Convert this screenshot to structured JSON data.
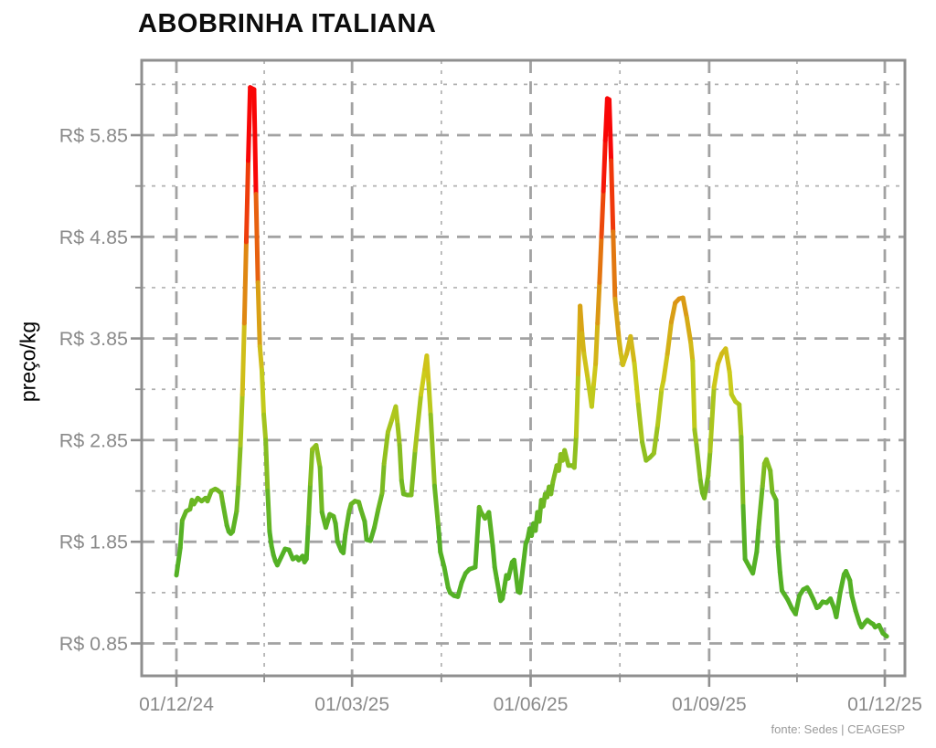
{
  "title": "ABOBRINHA ITALIANA",
  "footer": {
    "source": "fonte: Sedes | CEAGESP"
  },
  "chart_data": {
    "type": "line",
    "title": "ABOBRINHA ITALIANA",
    "xlabel": "",
    "ylabel": "preço/kg",
    "currency": "R$",
    "grid": true,
    "legend": "none",
    "x_tick_labels": [
      "01/12/24",
      "01/03/25",
      "01/06/25",
      "01/09/25",
      "01/12/25"
    ],
    "x_tick_days": [
      0,
      90.5,
      182.5,
      274.5,
      365
    ],
    "x_minor_days": [
      45.25,
      136.5,
      228.5,
      319.75
    ],
    "y_tick_labels": [
      "R$ 0.85",
      "R$ 1.85",
      "R$ 2.85",
      "R$ 3.85",
      "R$ 4.85",
      "R$ 5.85"
    ],
    "y_tick_values": [
      0.85,
      1.85,
      2.85,
      3.85,
      4.85,
      5.85
    ],
    "y_minor_values": [
      1.35,
      2.35,
      3.35,
      4.35,
      5.35,
      6.35
    ],
    "ylim": [
      0.53,
      6.59
    ],
    "xlim_days": [
      -18,
      375
    ],
    "x_units": "days since 01/12/24",
    "color_scale": {
      "description": "line colored by price: green low to red high",
      "green": "#44b81c",
      "olive": "#a3a51a",
      "dark_yellow": "#c19e15",
      "orange": "#e06a10",
      "red": "#fb1506",
      "domain": [
        1.9,
        5.7
      ]
    },
    "peaks": [
      {
        "date": "early Jan 2025",
        "price": 6.32
      },
      {
        "date": "mid Jul 2025",
        "price": 6.21
      }
    ],
    "series": [
      {
        "name": "preço abobrinha italiana (R$/kg)",
        "points": [
          [
            0,
            1.52
          ],
          [
            2,
            1.79
          ],
          [
            3,
            2.06
          ],
          [
            5,
            2.15
          ],
          [
            7,
            2.17
          ],
          [
            8,
            2.26
          ],
          [
            9,
            2.22
          ],
          [
            11,
            2.28
          ],
          [
            13,
            2.25
          ],
          [
            15,
            2.28
          ],
          [
            16,
            2.25
          ],
          [
            18,
            2.35
          ],
          [
            20,
            2.37
          ],
          [
            21,
            2.36
          ],
          [
            23,
            2.33
          ],
          [
            24,
            2.22
          ],
          [
            26,
            2.01
          ],
          [
            27,
            1.95
          ],
          [
            28,
            1.93
          ],
          [
            29,
            1.95
          ],
          [
            31,
            2.15
          ],
          [
            32,
            2.42
          ],
          [
            33,
            2.8
          ],
          [
            34,
            3.3
          ],
          [
            35,
            4.0
          ],
          [
            36,
            4.8
          ],
          [
            37,
            5.6
          ],
          [
            38,
            6.32
          ],
          [
            40,
            6.3
          ],
          [
            41,
            5.27
          ],
          [
            42,
            4.4
          ],
          [
            43,
            3.77
          ],
          [
            44,
            3.54
          ],
          [
            45,
            3.1
          ],
          [
            46,
            2.85
          ],
          [
            47,
            2.35
          ],
          [
            48,
            1.95
          ],
          [
            49,
            1.81
          ],
          [
            50,
            1.72
          ],
          [
            51,
            1.66
          ],
          [
            52,
            1.62
          ],
          [
            54,
            1.7
          ],
          [
            56,
            1.78
          ],
          [
            58,
            1.77
          ],
          [
            60,
            1.68
          ],
          [
            62,
            1.7
          ],
          [
            63,
            1.67
          ],
          [
            65,
            1.71
          ],
          [
            66,
            1.65
          ],
          [
            67,
            1.68
          ],
          [
            68,
            2.03
          ],
          [
            69,
            2.42
          ],
          [
            70,
            2.76
          ],
          [
            72,
            2.8
          ],
          [
            74,
            2.58
          ],
          [
            75,
            2.14
          ],
          [
            77,
            1.99
          ],
          [
            79,
            2.12
          ],
          [
            81,
            2.1
          ],
          [
            82,
            2.03
          ],
          [
            83,
            1.85
          ],
          [
            85,
            1.76
          ],
          [
            86,
            1.74
          ],
          [
            87,
            1.92
          ],
          [
            89,
            2.15
          ],
          [
            90,
            2.22
          ],
          [
            92,
            2.25
          ],
          [
            94,
            2.24
          ],
          [
            95,
            2.17
          ],
          [
            97,
            2.05
          ],
          [
            98,
            1.87
          ],
          [
            100,
            1.86
          ],
          [
            102,
            1.99
          ],
          [
            104,
            2.17
          ],
          [
            106,
            2.33
          ],
          [
            107,
            2.62
          ],
          [
            109,
            2.93
          ],
          [
            111,
            3.05
          ],
          [
            113,
            3.18
          ],
          [
            114,
            3.0
          ],
          [
            115,
            2.8
          ],
          [
            116,
            2.45
          ],
          [
            117,
            2.32
          ],
          [
            119,
            2.31
          ],
          [
            121,
            2.31
          ],
          [
            123,
            2.75
          ],
          [
            126,
            3.3
          ],
          [
            128,
            3.55
          ],
          [
            129,
            3.68
          ],
          [
            130,
            3.4
          ],
          [
            131,
            3.1
          ],
          [
            133,
            2.4
          ],
          [
            135,
            1.99
          ],
          [
            136,
            1.75
          ],
          [
            138,
            1.6
          ],
          [
            140,
            1.4
          ],
          [
            141,
            1.35
          ],
          [
            143,
            1.32
          ],
          [
            145,
            1.31
          ],
          [
            147,
            1.45
          ],
          [
            149,
            1.54
          ],
          [
            151,
            1.58
          ],
          [
            154,
            1.6
          ],
          [
            156,
            2.19
          ],
          [
            157,
            2.14
          ],
          [
            159,
            2.08
          ],
          [
            161,
            2.14
          ],
          [
            163,
            1.81
          ],
          [
            164,
            1.6
          ],
          [
            165,
            1.49
          ],
          [
            167,
            1.27
          ],
          [
            168,
            1.29
          ],
          [
            170,
            1.52
          ],
          [
            171,
            1.49
          ],
          [
            173,
            1.65
          ],
          [
            174,
            1.67
          ],
          [
            176,
            1.36
          ],
          [
            177,
            1.35
          ],
          [
            179,
            1.67
          ],
          [
            180,
            1.83
          ],
          [
            181,
            1.88
          ],
          [
            182,
            1.98
          ],
          [
            183,
            1.91
          ],
          [
            184,
            2.03
          ],
          [
            185,
            1.96
          ],
          [
            186,
            2.14
          ],
          [
            187,
            2.05
          ],
          [
            188,
            2.26
          ],
          [
            189,
            2.2
          ],
          [
            190,
            2.32
          ],
          [
            191,
            2.29
          ],
          [
            192,
            2.39
          ],
          [
            193,
            2.32
          ],
          [
            194,
            2.44
          ],
          [
            196,
            2.6
          ],
          [
            197,
            2.55
          ],
          [
            198,
            2.71
          ],
          [
            199,
            2.65
          ],
          [
            200,
            2.75
          ],
          [
            202,
            2.6
          ],
          [
            204,
            2.6
          ],
          [
            205,
            2.58
          ],
          [
            206,
            2.89
          ],
          [
            207,
            3.5
          ],
          [
            208,
            4.17
          ],
          [
            209,
            3.9
          ],
          [
            210,
            3.7
          ],
          [
            212,
            3.45
          ],
          [
            214,
            3.18
          ],
          [
            215,
            3.4
          ],
          [
            216,
            3.6
          ],
          [
            217,
            4.0
          ],
          [
            218,
            4.4
          ],
          [
            219,
            4.85
          ],
          [
            220,
            5.3
          ],
          [
            221,
            5.8
          ],
          [
            222,
            6.21
          ],
          [
            223,
            6.2
          ],
          [
            224,
            5.6
          ],
          [
            225,
            4.9
          ],
          [
            226,
            4.24
          ],
          [
            228,
            3.85
          ],
          [
            229,
            3.7
          ],
          [
            230,
            3.59
          ],
          [
            232,
            3.7
          ],
          [
            234,
            3.87
          ],
          [
            236,
            3.6
          ],
          [
            238,
            3.2
          ],
          [
            240,
            2.83
          ],
          [
            242,
            2.65
          ],
          [
            244,
            2.68
          ],
          [
            246,
            2.72
          ],
          [
            248,
            3.0
          ],
          [
            250,
            3.35
          ],
          [
            251,
            3.44
          ],
          [
            253,
            3.7
          ],
          [
            255,
            4.01
          ],
          [
            257,
            4.2
          ],
          [
            259,
            4.24
          ],
          [
            261,
            4.25
          ],
          [
            263,
            4.05
          ],
          [
            265,
            3.81
          ],
          [
            266,
            3.63
          ],
          [
            267,
            2.95
          ],
          [
            268,
            2.8
          ],
          [
            270,
            2.45
          ],
          [
            271,
            2.33
          ],
          [
            272,
            2.28
          ],
          [
            274,
            2.5
          ],
          [
            275,
            2.74
          ],
          [
            277,
            3.37
          ],
          [
            279,
            3.6
          ],
          [
            281,
            3.7
          ],
          [
            283,
            3.75
          ],
          [
            285,
            3.52
          ],
          [
            286,
            3.3
          ],
          [
            288,
            3.23
          ],
          [
            290,
            3.2
          ],
          [
            291,
            2.88
          ],
          [
            292,
            2.2
          ],
          [
            293,
            1.68
          ],
          [
            295,
            1.61
          ],
          [
            297,
            1.54
          ],
          [
            299,
            1.75
          ],
          [
            300,
            1.99
          ],
          [
            302,
            2.4
          ],
          [
            303,
            2.62
          ],
          [
            304,
            2.66
          ],
          [
            306,
            2.55
          ],
          [
            307,
            2.34
          ],
          [
            309,
            2.26
          ],
          [
            310,
            1.8
          ],
          [
            311,
            1.55
          ],
          [
            312,
            1.37
          ],
          [
            313,
            1.34
          ],
          [
            315,
            1.28
          ],
          [
            317,
            1.2
          ],
          [
            319,
            1.14
          ],
          [
            321,
            1.32
          ],
          [
            323,
            1.38
          ],
          [
            325,
            1.4
          ],
          [
            326,
            1.37
          ],
          [
            328,
            1.29
          ],
          [
            330,
            1.2
          ],
          [
            331,
            1.21
          ],
          [
            333,
            1.26
          ],
          [
            335,
            1.25
          ],
          [
            337,
            1.29
          ],
          [
            339,
            1.19
          ],
          [
            340,
            1.11
          ],
          [
            342,
            1.35
          ],
          [
            344,
            1.53
          ],
          [
            345,
            1.56
          ],
          [
            347,
            1.47
          ],
          [
            348,
            1.32
          ],
          [
            350,
            1.17
          ],
          [
            352,
            1.05
          ],
          [
            353,
            1.01
          ],
          [
            355,
            1.06
          ],
          [
            356,
            1.08
          ],
          [
            358,
            1.05
          ],
          [
            359,
            1.04
          ],
          [
            360,
            1.01
          ],
          [
            362,
            1.03
          ],
          [
            364,
            0.95
          ],
          [
            366,
            0.92
          ]
        ]
      }
    ]
  }
}
